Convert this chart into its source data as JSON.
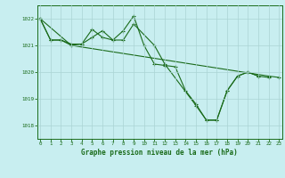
{
  "title": "Graphe pression niveau de la mer (hPa)",
  "background_color": "#c8eef0",
  "grid_color": "#aad4d4",
  "line_color": "#1a6b1a",
  "xlim": [
    -0.3,
    23.3
  ],
  "ylim": [
    1017.5,
    1022.5
  ],
  "yticks": [
    1018,
    1019,
    1020,
    1021,
    1022
  ],
  "xticks": [
    0,
    1,
    2,
    3,
    4,
    5,
    6,
    7,
    8,
    9,
    10,
    11,
    12,
    13,
    14,
    15,
    16,
    17,
    18,
    19,
    20,
    21,
    22,
    23
  ],
  "series1_x": [
    0,
    1,
    2,
    3,
    4,
    5,
    6,
    7,
    8,
    9,
    10,
    11,
    12,
    13,
    14,
    15,
    16,
    17,
    18,
    19,
    20,
    21
  ],
  "series1_y": [
    1022.0,
    1021.2,
    1021.2,
    1021.0,
    1021.05,
    1021.6,
    1021.3,
    1021.2,
    1021.55,
    1022.1,
    1021.0,
    1020.3,
    1020.25,
    1020.2,
    1019.3,
    1018.8,
    1018.2,
    1018.2,
    1019.3,
    1019.85,
    1020.0,
    1019.85
  ],
  "series2_x": [
    0,
    1,
    2,
    3,
    4,
    5,
    6,
    7,
    8,
    9,
    11,
    12,
    15,
    16,
    17,
    18,
    19,
    20,
    21,
    22
  ],
  "series2_y": [
    1022.0,
    1021.2,
    1021.2,
    1021.05,
    1021.05,
    1021.3,
    1021.55,
    1021.2,
    1021.2,
    1021.8,
    1021.0,
    1020.3,
    1018.75,
    1018.2,
    1018.2,
    1019.3,
    1019.85,
    1020.0,
    1019.85,
    1019.8
  ],
  "series3_x": [
    0,
    3,
    22,
    23
  ],
  "series3_y": [
    1022.0,
    1021.0,
    1019.85,
    1019.8
  ]
}
